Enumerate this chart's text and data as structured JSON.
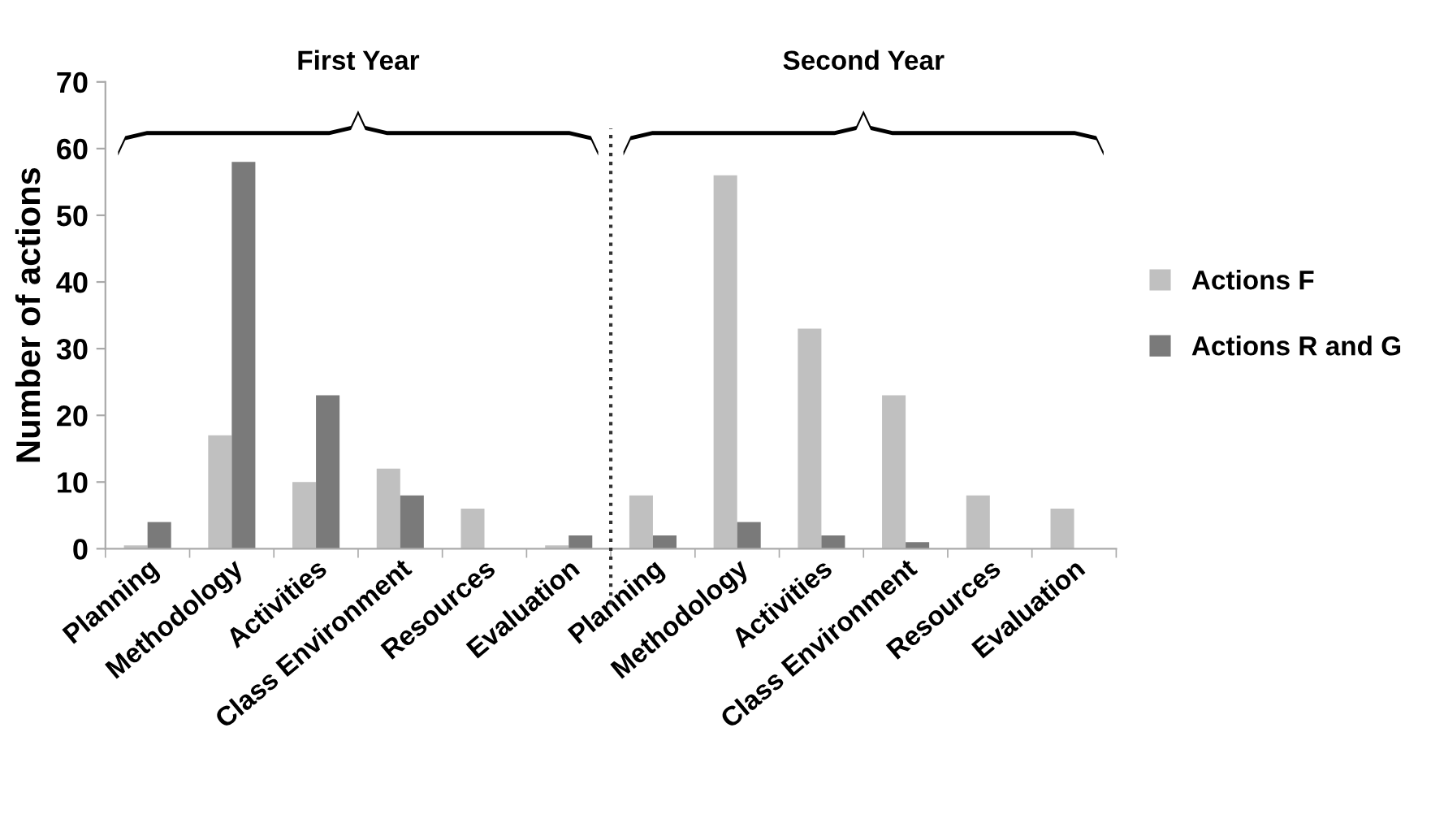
{
  "chart_data": {
    "type": "bar",
    "ylabel": "Number of actions",
    "categories": [
      "Planning",
      "Methodology",
      "Activities",
      "Class Environment",
      "Resources",
      "Evaluation",
      "Planning",
      "Methodology",
      "Activities",
      "Class Environment",
      "Resources",
      "Evaluation"
    ],
    "series": [
      {
        "name": "Actions F",
        "color": "#c0c0c0",
        "values": [
          0.5,
          17,
          10,
          12,
          6,
          0.5,
          8,
          56,
          33,
          23,
          8,
          6
        ]
      },
      {
        "name": "Actions R and G",
        "color": "#7a7a7a",
        "values": [
          4,
          58,
          23,
          8,
          0,
          2,
          2,
          4,
          2,
          1,
          0,
          0
        ]
      }
    ],
    "ylim": [
      0,
      70
    ],
    "yticks": [
      0,
      10,
      20,
      30,
      40,
      50,
      60,
      70
    ],
    "annotations": [
      "First Year",
      "Second Year"
    ],
    "legend": "right",
    "grid": false
  }
}
